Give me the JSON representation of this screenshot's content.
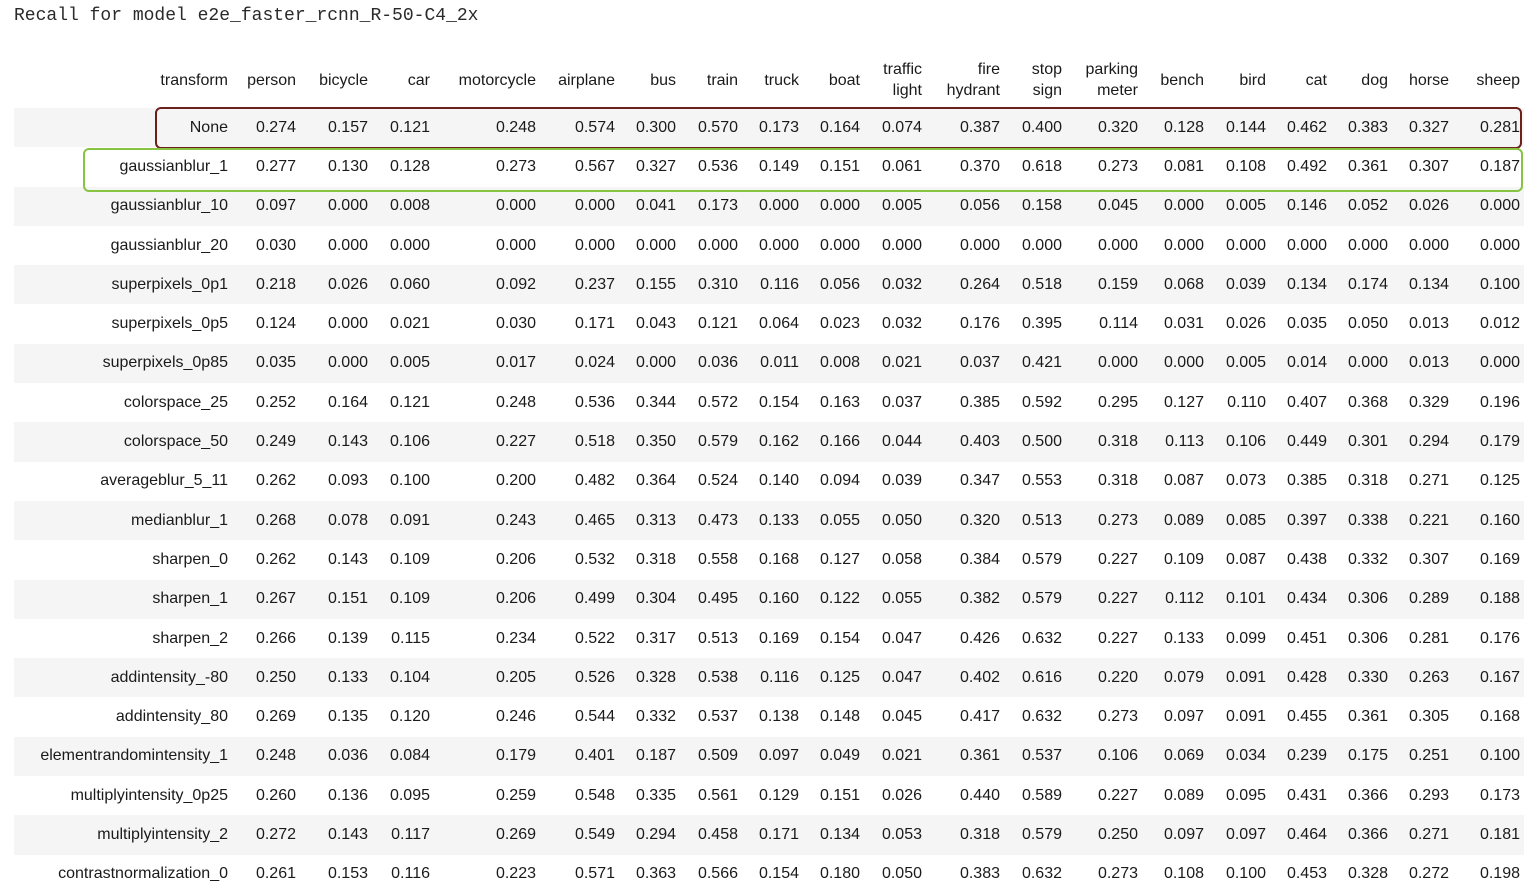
{
  "title": "Recall for model e2e_faster_rcnn_R-50-C4_2x",
  "table": {
    "columns": [
      "transform",
      "person",
      "bicycle",
      "car",
      "motorcycle",
      "airplane",
      "bus",
      "train",
      "truck",
      "boat",
      "traffic light",
      "fire hydrant",
      "stop sign",
      "parking meter",
      "bench",
      "bird",
      "cat",
      "dog",
      "horse",
      "sheep"
    ],
    "rows": [
      [
        "None",
        "0.274",
        "0.157",
        "0.121",
        "0.248",
        "0.574",
        "0.300",
        "0.570",
        "0.173",
        "0.164",
        "0.074",
        "0.387",
        "0.400",
        "0.320",
        "0.128",
        "0.144",
        "0.462",
        "0.383",
        "0.327",
        "0.281"
      ],
      [
        "gaussianblur_1",
        "0.277",
        "0.130",
        "0.128",
        "0.273",
        "0.567",
        "0.327",
        "0.536",
        "0.149",
        "0.151",
        "0.061",
        "0.370",
        "0.618",
        "0.273",
        "0.081",
        "0.108",
        "0.492",
        "0.361",
        "0.307",
        "0.187"
      ],
      [
        "gaussianblur_10",
        "0.097",
        "0.000",
        "0.008",
        "0.000",
        "0.000",
        "0.041",
        "0.173",
        "0.000",
        "0.000",
        "0.005",
        "0.056",
        "0.158",
        "0.045",
        "0.000",
        "0.005",
        "0.146",
        "0.052",
        "0.026",
        "0.000"
      ],
      [
        "gaussianblur_20",
        "0.030",
        "0.000",
        "0.000",
        "0.000",
        "0.000",
        "0.000",
        "0.000",
        "0.000",
        "0.000",
        "0.000",
        "0.000",
        "0.000",
        "0.000",
        "0.000",
        "0.000",
        "0.000",
        "0.000",
        "0.000",
        "0.000"
      ],
      [
        "superpixels_0p1",
        "0.218",
        "0.026",
        "0.060",
        "0.092",
        "0.237",
        "0.155",
        "0.310",
        "0.116",
        "0.056",
        "0.032",
        "0.264",
        "0.518",
        "0.159",
        "0.068",
        "0.039",
        "0.134",
        "0.174",
        "0.134",
        "0.100"
      ],
      [
        "superpixels_0p5",
        "0.124",
        "0.000",
        "0.021",
        "0.030",
        "0.171",
        "0.043",
        "0.121",
        "0.064",
        "0.023",
        "0.032",
        "0.176",
        "0.395",
        "0.114",
        "0.031",
        "0.026",
        "0.035",
        "0.050",
        "0.013",
        "0.012"
      ],
      [
        "superpixels_0p85",
        "0.035",
        "0.000",
        "0.005",
        "0.017",
        "0.024",
        "0.000",
        "0.036",
        "0.011",
        "0.008",
        "0.021",
        "0.037",
        "0.421",
        "0.000",
        "0.000",
        "0.005",
        "0.014",
        "0.000",
        "0.013",
        "0.000"
      ],
      [
        "colorspace_25",
        "0.252",
        "0.164",
        "0.121",
        "0.248",
        "0.536",
        "0.344",
        "0.572",
        "0.154",
        "0.163",
        "0.037",
        "0.385",
        "0.592",
        "0.295",
        "0.127",
        "0.110",
        "0.407",
        "0.368",
        "0.329",
        "0.196"
      ],
      [
        "colorspace_50",
        "0.249",
        "0.143",
        "0.106",
        "0.227",
        "0.518",
        "0.350",
        "0.579",
        "0.162",
        "0.166",
        "0.044",
        "0.403",
        "0.500",
        "0.318",
        "0.113",
        "0.106",
        "0.449",
        "0.301",
        "0.294",
        "0.179"
      ],
      [
        "averageblur_5_11",
        "0.262",
        "0.093",
        "0.100",
        "0.200",
        "0.482",
        "0.364",
        "0.524",
        "0.140",
        "0.094",
        "0.039",
        "0.347",
        "0.553",
        "0.318",
        "0.087",
        "0.073",
        "0.385",
        "0.318",
        "0.271",
        "0.125"
      ],
      [
        "medianblur_1",
        "0.268",
        "0.078",
        "0.091",
        "0.243",
        "0.465",
        "0.313",
        "0.473",
        "0.133",
        "0.055",
        "0.050",
        "0.320",
        "0.513",
        "0.273",
        "0.089",
        "0.085",
        "0.397",
        "0.338",
        "0.221",
        "0.160"
      ],
      [
        "sharpen_0",
        "0.262",
        "0.143",
        "0.109",
        "0.206",
        "0.532",
        "0.318",
        "0.558",
        "0.168",
        "0.127",
        "0.058",
        "0.384",
        "0.579",
        "0.227",
        "0.109",
        "0.087",
        "0.438",
        "0.332",
        "0.307",
        "0.169"
      ],
      [
        "sharpen_1",
        "0.267",
        "0.151",
        "0.109",
        "0.206",
        "0.499",
        "0.304",
        "0.495",
        "0.160",
        "0.122",
        "0.055",
        "0.382",
        "0.579",
        "0.227",
        "0.112",
        "0.101",
        "0.434",
        "0.306",
        "0.289",
        "0.188"
      ],
      [
        "sharpen_2",
        "0.266",
        "0.139",
        "0.115",
        "0.234",
        "0.522",
        "0.317",
        "0.513",
        "0.169",
        "0.154",
        "0.047",
        "0.426",
        "0.632",
        "0.227",
        "0.133",
        "0.099",
        "0.451",
        "0.306",
        "0.281",
        "0.176"
      ],
      [
        "addintensity_-80",
        "0.250",
        "0.133",
        "0.104",
        "0.205",
        "0.526",
        "0.328",
        "0.538",
        "0.116",
        "0.125",
        "0.047",
        "0.402",
        "0.616",
        "0.220",
        "0.079",
        "0.091",
        "0.428",
        "0.330",
        "0.263",
        "0.167"
      ],
      [
        "addintensity_80",
        "0.269",
        "0.135",
        "0.120",
        "0.246",
        "0.544",
        "0.332",
        "0.537",
        "0.138",
        "0.148",
        "0.045",
        "0.417",
        "0.632",
        "0.273",
        "0.097",
        "0.091",
        "0.455",
        "0.361",
        "0.305",
        "0.168"
      ],
      [
        "elementrandomintensity_1",
        "0.248",
        "0.036",
        "0.084",
        "0.179",
        "0.401",
        "0.187",
        "0.509",
        "0.097",
        "0.049",
        "0.021",
        "0.361",
        "0.537",
        "0.106",
        "0.069",
        "0.034",
        "0.239",
        "0.175",
        "0.251",
        "0.100"
      ],
      [
        "multiplyintensity_0p25",
        "0.260",
        "0.136",
        "0.095",
        "0.259",
        "0.548",
        "0.335",
        "0.561",
        "0.129",
        "0.151",
        "0.026",
        "0.440",
        "0.589",
        "0.227",
        "0.089",
        "0.095",
        "0.431",
        "0.366",
        "0.293",
        "0.173"
      ],
      [
        "multiplyintensity_2",
        "0.272",
        "0.143",
        "0.117",
        "0.269",
        "0.549",
        "0.294",
        "0.458",
        "0.171",
        "0.134",
        "0.053",
        "0.318",
        "0.579",
        "0.250",
        "0.097",
        "0.097",
        "0.464",
        "0.366",
        "0.271",
        "0.181"
      ],
      [
        "contrastnormalization_0",
        "0.261",
        "0.153",
        "0.116",
        "0.223",
        "0.571",
        "0.363",
        "0.566",
        "0.154",
        "0.180",
        "0.050",
        "0.383",
        "0.632",
        "0.273",
        "0.108",
        "0.100",
        "0.453",
        "0.328",
        "0.272",
        "0.198"
      ]
    ]
  },
  "highlight_colors": {
    "none_row": "#6b2019",
    "gaussianblur_1_row": "#86c442"
  }
}
